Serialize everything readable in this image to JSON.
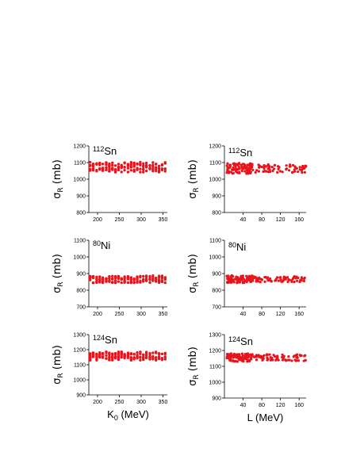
{
  "chart_data": [
    {
      "type": "scatter",
      "title": "",
      "annotation": {
        "mass": "112",
        "element": "Sn"
      },
      "ylabel": {
        "symbol": "σ",
        "sub": "R",
        "unit": "(mb)"
      },
      "xlabel": "",
      "xlim": [
        180,
        360
      ],
      "ylim": [
        800,
        1200
      ],
      "xticks": [
        200,
        250,
        300,
        350
      ],
      "yticks": [
        800,
        900,
        1000,
        1100,
        1200
      ],
      "x_positions": [
        183,
        190,
        198,
        205,
        212,
        220,
        227,
        234,
        241,
        248,
        255,
        262,
        270,
        277,
        284,
        291,
        298,
        305,
        312,
        320,
        327,
        334,
        341,
        348,
        355
      ],
      "y_center": 1072,
      "y_spread": 30,
      "color": "#e8141c"
    },
    {
      "type": "scatter",
      "title": "",
      "annotation": {
        "mass": "112",
        "element": "Sn"
      },
      "ylabel": {
        "symbol": "σ",
        "sub": "R",
        "unit": "(mb)"
      },
      "xlabel": "",
      "xlim": [
        0,
        175
      ],
      "ylim": [
        800,
        1200
      ],
      "xticks": [
        40,
        80,
        120,
        160
      ],
      "yticks": [
        800,
        900,
        1000,
        1100,
        1200
      ],
      "y_center": 1065,
      "y_spread": 32,
      "color": "#e8141c"
    },
    {
      "type": "scatter",
      "title": "",
      "annotation": {
        "mass": "80",
        "element": "Ni"
      },
      "ylabel": {
        "symbol": "σ",
        "sub": "R",
        "unit": "(mb)"
      },
      "xlabel": "",
      "xlim": [
        180,
        360
      ],
      "ylim": [
        700,
        1100
      ],
      "xticks": [
        200,
        250,
        300,
        350
      ],
      "yticks": [
        700,
        800,
        900,
        1000,
        1100
      ],
      "x_positions": [
        183,
        190,
        198,
        205,
        212,
        220,
        227,
        234,
        241,
        248,
        255,
        262,
        270,
        277,
        284,
        291,
        298,
        305,
        312,
        320,
        327,
        334,
        341,
        348,
        355
      ],
      "y_center": 866,
      "y_spread": 22,
      "color": "#e8141c"
    },
    {
      "type": "scatter",
      "title": "",
      "annotation": {
        "mass": "80",
        "element": "Ni"
      },
      "ylabel": {
        "symbol": "σ",
        "sub": "R",
        "unit": "(mb)"
      },
      "xlabel": "",
      "xlim": [
        0,
        175
      ],
      "ylim": [
        700,
        1100
      ],
      "xticks": [
        40,
        80,
        120,
        160
      ],
      "yticks": [
        700,
        800,
        900,
        1000,
        1100
      ],
      "y_center": 866,
      "y_spread": 22,
      "color": "#e8141c"
    },
    {
      "type": "scatter",
      "title": "",
      "annotation": {
        "mass": "124",
        "element": "Sn"
      },
      "ylabel": {
        "symbol": "σ",
        "sub": "R",
        "unit": "(mb)"
      },
      "xlabel": {
        "symbol": "K",
        "sub": "0",
        "unit": "(MeV)"
      },
      "xlim": [
        180,
        360
      ],
      "ylim": [
        900,
        1300
      ],
      "xticks": [
        200,
        250,
        300,
        350
      ],
      "yticks": [
        900,
        1000,
        1100,
        1200,
        1300
      ],
      "x_positions": [
        183,
        190,
        198,
        205,
        212,
        220,
        227,
        234,
        241,
        248,
        255,
        262,
        270,
        277,
        284,
        291,
        298,
        305,
        312,
        320,
        327,
        334,
        341,
        348,
        355
      ],
      "y_center": 1158,
      "y_spread": 28,
      "color": "#e8141c"
    },
    {
      "type": "scatter",
      "title": "",
      "annotation": {
        "mass": "124",
        "element": "Sn"
      },
      "ylabel": {
        "symbol": "σ",
        "sub": "R",
        "unit": "(mb)"
      },
      "xlabel": {
        "symbol": "L",
        "sub": "",
        "unit": "(MeV)"
      },
      "xlim": [
        0,
        175
      ],
      "ylim": [
        900,
        1300
      ],
      "xticks": [
        40,
        80,
        120,
        160
      ],
      "yticks": [
        900,
        1000,
        1100,
        1200,
        1300
      ],
      "y_center": 1155,
      "y_spread": 26,
      "color": "#e8141c"
    }
  ]
}
